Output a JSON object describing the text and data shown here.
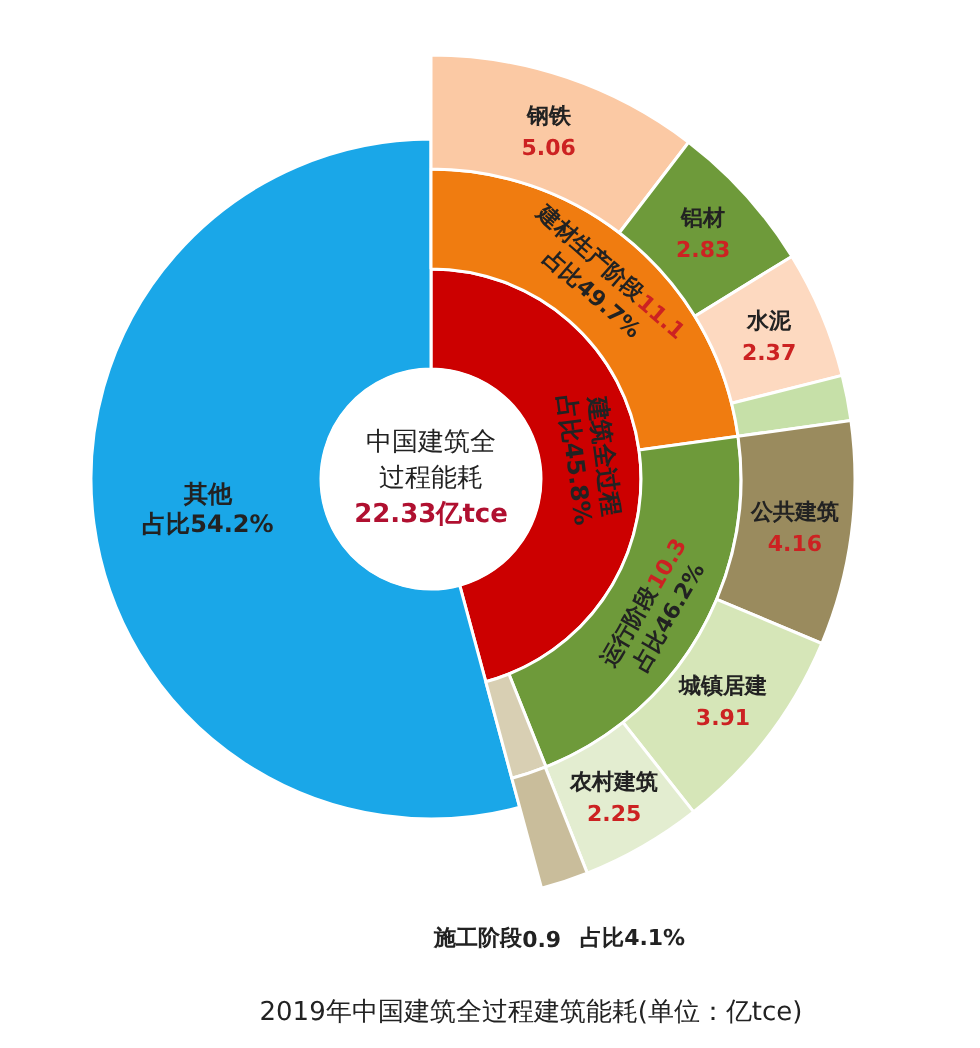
{
  "chart_data": [
    {
      "type": "other",
      "title": "2019年中国建筑全过程建筑能耗(单位：亿tce)",
      "annotations": [
        "中国建筑全",
        "过程能耗",
        "22.33亿tce"
      ],
      "categories": [
        "建筑全过程",
        "其他"
      ],
      "values": [
        45.8,
        54.2
      ],
      "value_labels": [
        "占比45.8%",
        "占比54.2%"
      ],
      "colors": [
        "#cc0000",
        "#1aa7e8"
      ]
    },
    {
      "type": "other",
      "categories": [
        "建材生产阶段",
        "运行阶段",
        "施工阶段"
      ],
      "values": [
        11.1,
        10.3,
        0.9
      ],
      "value_labels": [
        "11.1",
        "10.3",
        "0.9"
      ],
      "annotations": [
        "占比49.7%",
        "占比46.2%",
        "占比4.1%"
      ],
      "colors": [
        "#f07c10",
        "#6e9a3a",
        "#d8cfb3"
      ]
    },
    {
      "type": "other",
      "categories": [
        "钢铁",
        "铝材",
        "水泥",
        null,
        "公共建筑",
        "城镇居建",
        "农村建筑",
        null
      ],
      "values": [
        5.06,
        2.83,
        2.37,
        null,
        4.16,
        3.91,
        2.25,
        null
      ],
      "value_labels": [
        "5.06",
        "2.83",
        "2.37",
        null,
        "4.16",
        "3.91",
        "2.25",
        null
      ],
      "colors": [
        "#fbc9a4",
        "#6e9a3a",
        "#fdd9c0",
        "#c6e0a8",
        "#9a8b5e",
        "#d6e6b8",
        "#e3edd0",
        "#c9bd9b"
      ]
    }
  ]
}
